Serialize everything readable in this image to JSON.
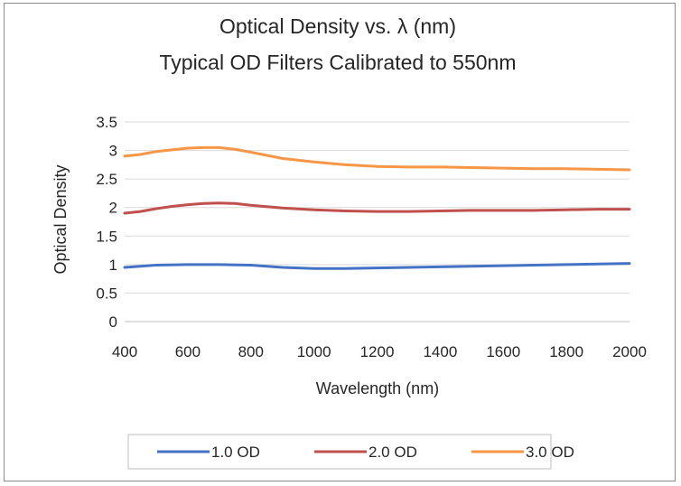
{
  "chart_data": {
    "type": "line",
    "title_line1": "Optical Density vs. λ (nm)",
    "title_line2": "Typical OD Filters Calibrated to 550nm",
    "xlabel": "Wavelength (nm)",
    "ylabel": "Optical Density",
    "xlim": [
      400,
      2000
    ],
    "ylim": [
      0,
      3.5
    ],
    "x_ticks": [
      "400",
      "600",
      "800",
      "1000",
      "1200",
      "1400",
      "1600",
      "1800",
      "2000"
    ],
    "y_ticks": [
      "0",
      "0.5",
      "1",
      "1.5",
      "2",
      "2.5",
      "3",
      "3.5"
    ],
    "grid": true,
    "legend_position": "bottom",
    "series": [
      {
        "name": "1.0 OD",
        "color": "#4472C4",
        "x": [
          400,
          500,
          600,
          700,
          800,
          900,
          1000,
          1100,
          1200,
          1300,
          1400,
          1500,
          1600,
          1700,
          1800,
          1900,
          2000
        ],
        "values": [
          0.95,
          0.99,
          1.0,
          1.0,
          0.99,
          0.95,
          0.93,
          0.93,
          0.94,
          0.95,
          0.96,
          0.97,
          0.98,
          0.99,
          1.0,
          1.01,
          1.02
        ]
      },
      {
        "name": "2.0 OD",
        "color": "#C0504D",
        "x": [
          400,
          450,
          500,
          550,
          600,
          650,
          700,
          750,
          800,
          900,
          1000,
          1100,
          1200,
          1300,
          1400,
          1500,
          1600,
          1700,
          1800,
          1900,
          2000
        ],
        "values": [
          1.9,
          1.93,
          1.98,
          2.02,
          2.05,
          2.07,
          2.08,
          2.07,
          2.04,
          1.99,
          1.96,
          1.94,
          1.93,
          1.93,
          1.94,
          1.95,
          1.95,
          1.95,
          1.96,
          1.97,
          1.97
        ]
      },
      {
        "name": "3.0 OD",
        "color": "#F79646",
        "x": [
          400,
          450,
          500,
          550,
          600,
          650,
          700,
          750,
          800,
          900,
          1000,
          1100,
          1200,
          1300,
          1400,
          1500,
          1600,
          1700,
          1800,
          1900,
          2000
        ],
        "values": [
          2.9,
          2.93,
          2.98,
          3.01,
          3.04,
          3.05,
          3.05,
          3.02,
          2.97,
          2.86,
          2.8,
          2.75,
          2.72,
          2.71,
          2.71,
          2.7,
          2.69,
          2.68,
          2.68,
          2.67,
          2.66
        ]
      }
    ]
  }
}
